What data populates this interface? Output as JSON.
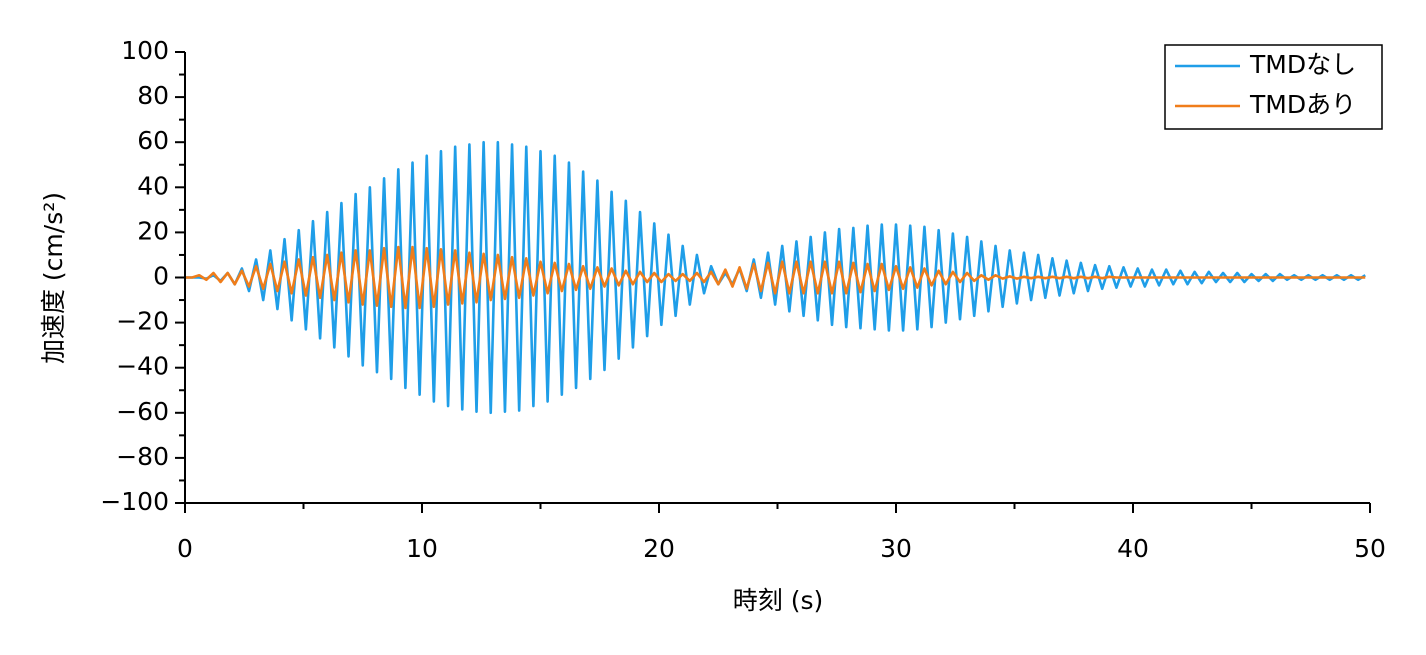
{
  "chart_data": {
    "type": "line",
    "xlabel": "時刻 (s)",
    "ylabel": "加速度 (cm/s²)",
    "x": [
      0,
      0.3,
      0.6,
      0.9,
      1.2,
      1.5,
      1.8,
      2.1,
      2.4,
      2.7,
      3,
      3.3,
      3.6,
      3.9,
      4.2,
      4.5,
      4.8,
      5.1,
      5.4,
      5.7,
      6,
      6.3,
      6.6,
      6.9,
      7.2,
      7.5,
      7.8,
      8.1,
      8.4,
      8.7,
      9,
      9.3,
      9.6,
      9.9,
      10.2,
      10.5,
      10.8,
      11.1,
      11.4,
      11.7,
      12,
      12.3,
      12.6,
      12.9,
      13.2,
      13.5,
      13.8,
      14.1,
      14.4,
      14.7,
      15,
      15.3,
      15.6,
      15.9,
      16.2,
      16.5,
      16.8,
      17.1,
      17.4,
      17.7,
      18,
      18.3,
      18.6,
      18.9,
      19.2,
      19.5,
      19.8,
      20.1,
      20.4,
      20.7,
      21,
      21.3,
      21.6,
      21.9,
      22.2,
      22.5,
      22.8,
      23.1,
      23.4,
      23.7,
      24,
      24.3,
      24.6,
      24.9,
      25.2,
      25.5,
      25.8,
      26.1,
      26.4,
      26.7,
      27,
      27.3,
      27.6,
      27.9,
      28.2,
      28.5,
      28.8,
      29.1,
      29.4,
      29.7,
      30,
      30.3,
      30.6,
      30.9,
      31.2,
      31.5,
      31.8,
      32.1,
      32.4,
      32.7,
      33,
      33.3,
      33.6,
      33.9,
      34.2,
      34.5,
      34.8,
      35.1,
      35.4,
      35.7,
      36,
      36.3,
      36.6,
      36.9,
      37.2,
      37.5,
      37.8,
      38.1,
      38.4,
      38.7,
      39,
      39.3,
      39.6,
      39.9,
      40.2,
      40.5,
      40.8,
      41.1,
      41.4,
      41.7,
      42,
      42.3,
      42.6,
      42.9,
      43.2,
      43.5,
      43.8,
      44.1,
      44.4,
      44.7,
      45,
      45.3,
      45.6,
      45.9,
      46.2,
      46.5,
      46.8,
      47.1,
      47.4,
      47.7,
      48,
      48.3,
      48.6,
      48.9,
      49.2,
      49.5,
      49.8
    ],
    "series": [
      {
        "name": "TMDなし",
        "color": "#1f9ee8",
        "values": [
          0,
          0,
          0,
          -0.5,
          1,
          -1.5,
          2,
          -3,
          4,
          -6,
          8,
          -10,
          12,
          -14,
          17,
          -19,
          21,
          -23,
          25,
          -27,
          29,
          -31,
          33,
          -35,
          37,
          -39,
          40,
          -42,
          44,
          -45,
          48,
          -49,
          51,
          -52,
          54,
          -55,
          56,
          -57,
          58,
          -58.5,
          59,
          -59.5,
          60,
          -60,
          60,
          -59.5,
          59,
          -59,
          58,
          -57,
          56,
          -55,
          54,
          -52,
          51,
          -49,
          47,
          -45,
          43,
          -41,
          38,
          -36,
          34,
          -31,
          29,
          -26,
          24,
          -21,
          19,
          -17,
          14,
          -12,
          10,
          -7,
          5,
          -3,
          2,
          -3,
          4,
          -6,
          8,
          -9,
          11,
          -12,
          14,
          -15,
          16,
          -17,
          18,
          -19,
          20,
          -21,
          21.5,
          -22,
          22,
          -22.5,
          23,
          -23,
          23.5,
          -23.5,
          23.5,
          -23.5,
          23,
          -23,
          22.5,
          -22,
          21,
          -20,
          19.5,
          -18.5,
          18,
          -17,
          16,
          -15,
          14,
          -13,
          12,
          -11.5,
          11,
          -10,
          10,
          -9,
          8.5,
          -8,
          7.5,
          -7,
          6.5,
          -6,
          5.5,
          -5,
          5,
          -4.5,
          4.5,
          -4,
          4,
          -4,
          3.5,
          -3.5,
          3.5,
          -3,
          3,
          -3,
          2.5,
          -2.5,
          2.5,
          -2,
          2,
          -2,
          2,
          -2,
          1.5,
          -1.5,
          1.5,
          -1.5,
          1.5,
          -1,
          1,
          -1,
          1,
          -1,
          1,
          -1,
          1,
          -1,
          1,
          -1,
          1
        ]
      },
      {
        "name": "TMDあり",
        "color": "#f07d1a",
        "values": [
          0,
          0,
          1,
          -1,
          2,
          -2,
          2,
          -3,
          3,
          -4,
          5,
          -5,
          6,
          -6,
          7,
          -7,
          8,
          -8,
          9,
          -9,
          10,
          -10,
          11,
          -11,
          12,
          -12,
          12,
          -12.5,
          13,
          -13,
          13.5,
          -13.5,
          13.5,
          -13.5,
          13,
          -13,
          12.5,
          -12,
          12,
          -11.5,
          11,
          -11,
          10.5,
          -10,
          10,
          -9.5,
          9,
          -9,
          8.5,
          -8,
          7,
          -7,
          6.5,
          -6,
          6,
          -5.5,
          5,
          -5,
          4.5,
          -4,
          4,
          -3.5,
          3,
          -3,
          2.5,
          -2,
          2,
          -2,
          1.5,
          -1.5,
          1.5,
          -1.5,
          2,
          -2,
          2.5,
          -3,
          3.5,
          -4,
          4.5,
          -5,
          6,
          -6,
          6.5,
          -7,
          7,
          -7,
          7,
          -7,
          7,
          -7,
          7,
          -7,
          7,
          -7,
          6.5,
          -6.5,
          6,
          -6,
          6,
          -5.5,
          5,
          -5,
          4.5,
          -4.5,
          4,
          -3.5,
          3,
          -3,
          2.5,
          -2,
          2,
          -1.5,
          1,
          -1,
          1,
          -0.5,
          0.5,
          -0.5,
          0.3,
          -0.3,
          0.3,
          -0.3,
          0.3,
          -0.3,
          0.3,
          -0.3,
          0.3,
          -0.3,
          0.3,
          -0.3,
          0.3,
          0,
          0,
          0,
          0,
          0,
          0,
          0,
          0,
          0,
          0,
          0,
          0,
          0,
          0,
          0,
          0,
          0,
          0,
          0,
          0,
          0,
          0,
          0,
          0,
          0,
          0,
          0,
          0,
          0,
          0,
          0,
          0,
          0,
          0,
          0,
          0
        ]
      }
    ],
    "xlim": [
      0,
      50
    ],
    "xticks": [
      0,
      10,
      20,
      30,
      40,
      50
    ],
    "xminorticks": [
      5,
      15,
      25,
      35,
      45
    ],
    "ylim": [
      -100,
      100
    ],
    "yticks": [
      {
        "value": -100,
        "label": "−100"
      },
      {
        "value": -80,
        "label": "−80"
      },
      {
        "value": -60,
        "label": "−60"
      },
      {
        "value": -40,
        "label": "−40"
      },
      {
        "value": -20,
        "label": "−20"
      },
      0,
      20,
      40,
      60,
      80,
      100
    ],
    "yminorticks": [
      -90,
      -70,
      -50,
      -30,
      -10,
      10,
      30,
      50,
      70,
      90
    ],
    "legend": "upper right"
  }
}
